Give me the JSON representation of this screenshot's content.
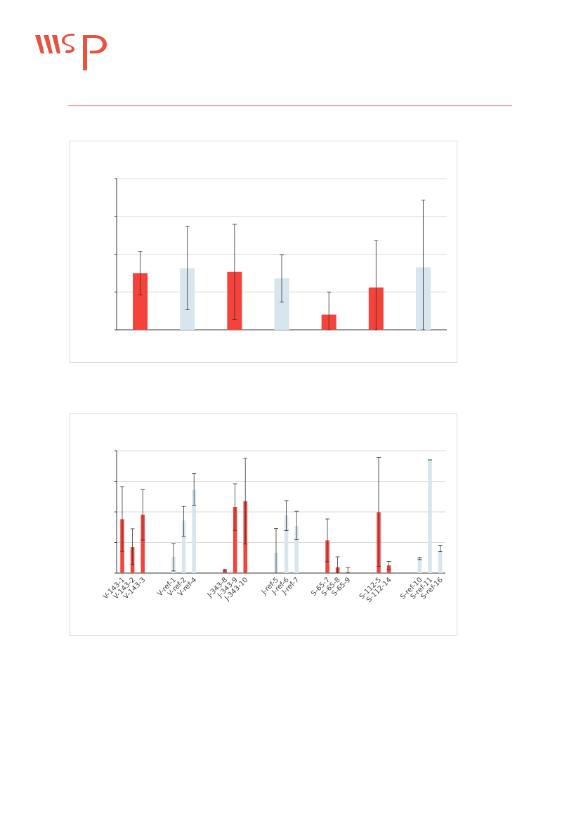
{
  "brand": {
    "logo_text": "wsp",
    "accent_color": "#e8503f"
  },
  "colors": {
    "highlight_bar": "#f4433b",
    "reference_bar": "#d6e5ee",
    "grid": "#d9d9d9",
    "axis": "#333333",
    "error_bar": "#333333"
  },
  "chart_data": [
    {
      "type": "bar",
      "title": "",
      "xlabel": "",
      "ylabel": "",
      "ylim": [
        0,
        4
      ],
      "grid": true,
      "categories": [
        "",
        "",
        "",
        "",
        "",
        "",
        ""
      ],
      "values": [
        1.5,
        1.63,
        1.53,
        1.36,
        0.4,
        1.12,
        1.65
      ],
      "error_low": [
        0.93,
        0.53,
        0.27,
        0.73,
        0.0,
        0.0,
        0.0
      ],
      "error_high": [
        2.07,
        2.73,
        2.79,
        1.99,
        1.0,
        2.36,
        3.43
      ],
      "bar_kind": [
        "highlight",
        "reference",
        "highlight",
        "reference",
        "highlight",
        "highlight",
        "reference"
      ]
    },
    {
      "type": "bar",
      "title": "",
      "xlabel": "",
      "ylabel": "",
      "ylim": [
        0,
        4
      ],
      "grid": true,
      "categories": [
        "V-143-1",
        "V-143-2",
        "V-143-3",
        "V-ref-1",
        "V-ref-2",
        "V-ref-4",
        "J-343-8",
        "J-343-9",
        "J-343-10",
        "J-ref-5",
        "J-ref-6",
        "J-ref-7",
        "S-65-7",
        "S-65-8",
        "S-65-9",
        "S-112-5",
        "S-112-14",
        "S-ref-10",
        "S-ref-11",
        "S-ref-16"
      ],
      "groups": [
        [
          "V-143-1",
          "V-143-2",
          "V-143-3"
        ],
        [
          "V-ref-1",
          "V-ref-2",
          "V-ref-4"
        ],
        [
          "J-343-8",
          "J-343-9",
          "J-343-10"
        ],
        [
          "J-ref-5",
          "J-ref-6",
          "J-ref-7"
        ],
        [
          "S-65-7",
          "S-65-8",
          "S-65-9"
        ],
        [
          "S-112-5",
          "S-112-14"
        ],
        [
          "S-ref-10",
          "S-ref-11",
          "S-ref-16"
        ]
      ],
      "values": [
        1.76,
        0.85,
        1.91,
        0.53,
        1.72,
        2.72,
        0.1,
        2.16,
        2.35,
        0.67,
        1.89,
        1.54,
        1.07,
        0.19,
        0.03,
        1.99,
        0.25,
        0.48,
        3.7,
        0.72
      ],
      "error_low": [
        0.71,
        0.28,
        1.08,
        0.07,
        1.2,
        2.22,
        0.07,
        1.4,
        0.95,
        0.0,
        1.39,
        1.09,
        0.37,
        0.0,
        0.0,
        0.22,
        0.12,
        0.44,
        3.7,
        0.7
      ],
      "error_high": [
        2.83,
        1.45,
        2.73,
        0.97,
        2.18,
        3.25,
        0.13,
        2.92,
        3.75,
        1.46,
        2.37,
        2.02,
        1.77,
        0.53,
        0.18,
        3.78,
        0.38,
        0.51,
        3.7,
        0.91
      ],
      "bar_kind": [
        "highlight",
        "highlight",
        "highlight",
        "reference",
        "reference",
        "reference",
        "highlight",
        "highlight",
        "highlight",
        "reference",
        "reference",
        "reference",
        "highlight",
        "highlight",
        "highlight",
        "highlight",
        "highlight",
        "reference",
        "reference",
        "reference"
      ]
    }
  ]
}
